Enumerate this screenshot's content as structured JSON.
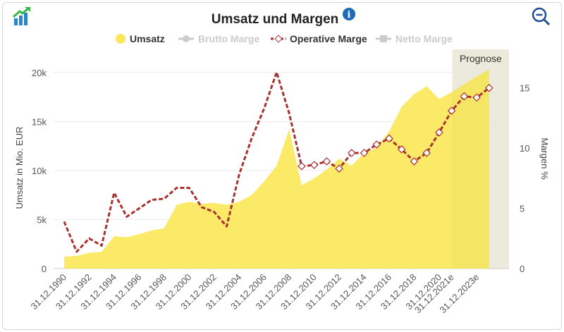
{
  "header": {
    "title": "Umsatz und Margen",
    "info_icon": "info-icon",
    "left_icon": "chart-growth-icon",
    "right_icon": "zoom-out-icon"
  },
  "colors": {
    "umsatz": "#fbe85a",
    "brutto": "#cccccc",
    "operative": "#a83232",
    "netto": "#cccccc",
    "prognose_band": "#eeeeee",
    "accent": "#1e6bb8"
  },
  "chart_data": {
    "type": "area",
    "title": "Umsatz und Margen",
    "ylabel": "Umsatz in Mio. EUR",
    "y2label": "Margen %",
    "ylim": [
      0,
      21500
    ],
    "y2lim": [
      0,
      17.5
    ],
    "yticks": [
      "0",
      "5k",
      "10k",
      "15k",
      "20k"
    ],
    "y2ticks": [
      "0",
      "5",
      "10",
      "15"
    ],
    "legend": [
      {
        "name": "Umsatz",
        "active": true
      },
      {
        "name": "Brutto Marge",
        "active": false
      },
      {
        "name": "Operative Marge",
        "active": true
      },
      {
        "name": "Netto Marge",
        "active": false
      }
    ],
    "forecast_label": "Prognose",
    "forecast_from": 2021,
    "x_tick_labels": [
      "31.12.1990",
      "31.12.1992",
      "31.12.1994",
      "31.12.1996",
      "31.12.1998",
      "31.12.2000",
      "31.12.2002",
      "31.12.2004",
      "31.12.2006",
      "31.12.2008",
      "31.12.2010",
      "31.12.2012",
      "31.12.2014",
      "31.12.2016",
      "31.12.2018",
      "31.12.2020",
      "31.12.2021e",
      "31.12.2023e"
    ],
    "x_tick_years": [
      1990,
      1992,
      1994,
      1996,
      1998,
      2000,
      2002,
      2004,
      2006,
      2008,
      2010,
      2012,
      2014,
      2016,
      2018,
      2020,
      2021,
      2023
    ],
    "years": [
      1990,
      1991,
      1992,
      1993,
      1994,
      1995,
      1996,
      1997,
      1998,
      1999,
      2000,
      2001,
      2002,
      2003,
      2004,
      2005,
      2006,
      2007,
      2008,
      2009,
      2010,
      2011,
      2012,
      2013,
      2014,
      2015,
      2016,
      2017,
      2018,
      2019,
      2020,
      2021,
      2022,
      2023,
      2024
    ],
    "series": [
      {
        "name": "Umsatz",
        "axis": "left",
        "values": [
          1200,
          1300,
          1600,
          1700,
          3300,
          3200,
          3500,
          3900,
          4100,
          6500,
          6800,
          6600,
          6700,
          6500,
          6800,
          7500,
          8900,
          10500,
          14200,
          8500,
          9200,
          10100,
          11200,
          10500,
          11800,
          12300,
          14000,
          16500,
          17800,
          18600,
          17300,
          18000,
          18800,
          19600,
          20300
        ]
      },
      {
        "name": "Operative Marge",
        "axis": "right",
        "values": [
          3.9,
          1.4,
          2.5,
          1.9,
          6.3,
          4.3,
          5.0,
          5.7,
          5.8,
          6.7,
          6.7,
          5.1,
          4.7,
          3.5,
          7.8,
          10.8,
          13.3,
          16.3,
          12.9,
          8.5,
          8.6,
          8.9,
          8.3,
          9.6,
          9.6,
          10.3,
          10.8,
          9.9,
          8.9,
          9.6,
          11.3,
          13.1,
          14.3,
          14.2,
          15.0
        ]
      }
    ]
  }
}
